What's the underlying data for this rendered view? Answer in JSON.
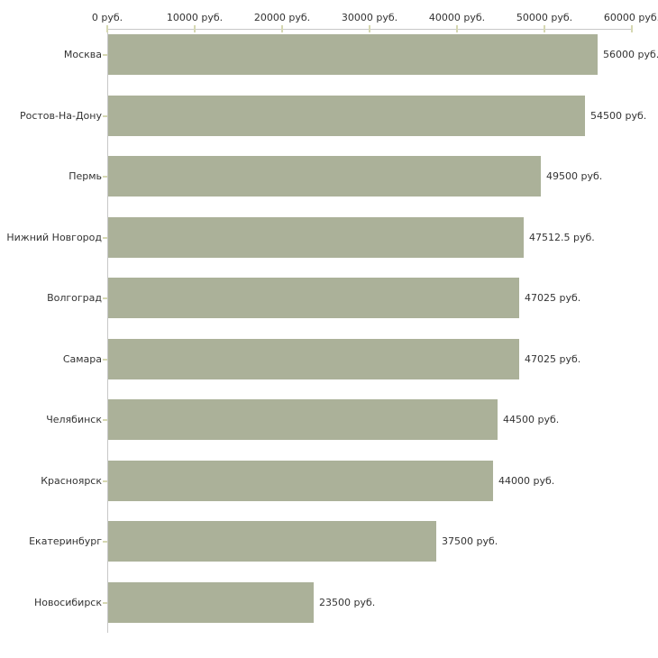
{
  "chart_data": {
    "type": "bar",
    "orientation": "horizontal",
    "title": "",
    "xlabel": "",
    "ylabel": "",
    "unit": "руб.",
    "categories": [
      "Москва",
      "Ростов-На-Дону",
      "Пермь",
      "Нижний Новгород",
      "Волгоград",
      "Самара",
      "Челябинск",
      "Красноярск",
      "Екатеринбург",
      "Новосибирск"
    ],
    "values": [
      56000,
      54500,
      49500,
      47512.5,
      47025,
      47025,
      44500,
      44000,
      37500,
      23500
    ],
    "value_labels": [
      "56000 руб.",
      "54500 руб.",
      "49500 руб.",
      "47512.5 руб.",
      "47025 руб.",
      "47025 руб.",
      "44500 руб.",
      "44000 руб.",
      "37500 руб.",
      "23500 руб."
    ],
    "x_axis": {
      "position": "top",
      "min": 0,
      "max": 60000,
      "ticks": [
        0,
        10000,
        20000,
        30000,
        40000,
        50000,
        60000
      ],
      "tick_labels": [
        "0 руб.",
        "10000 руб.",
        "20000 руб.",
        "30000 руб.",
        "40000 руб.",
        "50000 руб.",
        "60000 руб."
      ]
    },
    "grid": false,
    "legend": false,
    "colors": {
      "bar": "#abb199",
      "axis_line": "#c8c8c8",
      "tick_mark": "#d6d8b2",
      "text": "#333333",
      "background": "#ffffff"
    }
  }
}
